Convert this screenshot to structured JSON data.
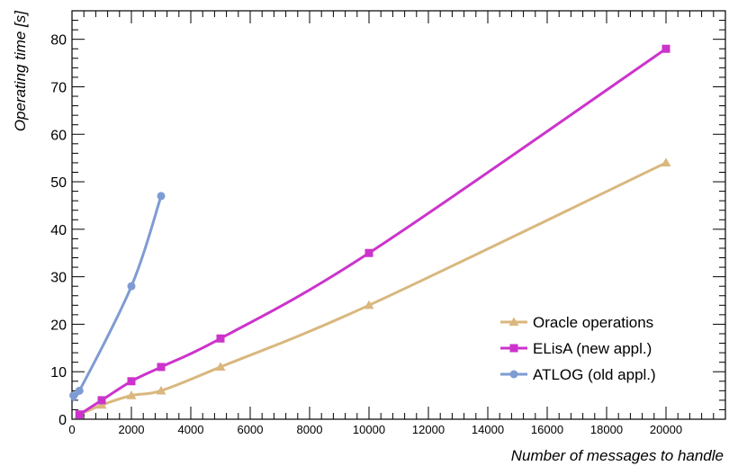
{
  "chart_data": {
    "type": "line",
    "title": "",
    "xlabel": "Number of messages to handle",
    "ylabel": "Operating time [s]",
    "xlim": [
      0,
      22000
    ],
    "ylim": [
      0,
      86
    ],
    "x_ticks_major": [
      0,
      2000,
      4000,
      6000,
      8000,
      10000,
      12000,
      14000,
      16000,
      18000,
      20000
    ],
    "y_ticks_major": [
      0,
      10,
      20,
      30,
      40,
      50,
      60,
      70,
      80
    ],
    "grid": false,
    "legend_position": "bottom-right",
    "series": [
      {
        "name": "Oracle operations",
        "color": "#d9b77e",
        "marker": "triangle",
        "x": [
          250,
          1000,
          2000,
          3000,
          5000,
          10000,
          20000
        ],
        "y": [
          1,
          3,
          5,
          6,
          11,
          24,
          54
        ]
      },
      {
        "name": "ELisA (new appl.)",
        "color": "#cc33cc",
        "marker": "square",
        "x": [
          250,
          1000,
          2000,
          3000,
          5000,
          10000,
          20000
        ],
        "y": [
          1,
          4,
          8,
          11,
          17,
          35,
          78
        ]
      },
      {
        "name": "ATLOG (old appl.)",
        "color": "#7f9bd3",
        "marker": "circle",
        "x": [
          50,
          250,
          2000,
          3000
        ],
        "y": [
          5,
          6,
          28,
          47
        ]
      }
    ]
  }
}
